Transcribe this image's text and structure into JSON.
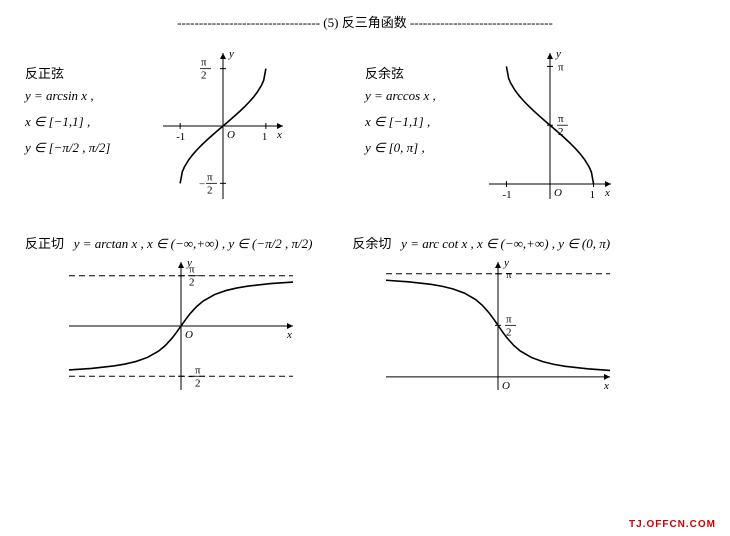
{
  "section": {
    "number": "(5)",
    "title": "反三角函数",
    "dashes": "---------------------------------",
    "full": "--------------------------------- (5)  反三角函数 ---------------------------------"
  },
  "arcsin": {
    "name": "反正弦",
    "formula": "y = arcsin x ,",
    "domain": "x ∈ [−1,1] ,",
    "range": "y ∈ [−π/2 , π/2]",
    "graph": {
      "type": "curve",
      "xlim": [
        -1.4,
        1.4
      ],
      "ylim": [
        -2.0,
        2.0
      ],
      "xticks": [
        {
          "v": -1,
          "label": "-1"
        },
        {
          "v": 1,
          "label": "1"
        }
      ],
      "yticks": [
        {
          "v": 1.5708,
          "label": "π/2"
        },
        {
          "v": -1.5708,
          "label": "−π/2"
        }
      ],
      "axis_color": "#000000",
      "curve_color": "#000000",
      "stroke_width": 1.6,
      "points": [
        [
          -1,
          -1.5708
        ],
        [
          -0.95,
          -1.2532
        ],
        [
          -0.9,
          -1.1198
        ],
        [
          -0.8,
          -0.9273
        ],
        [
          -0.7,
          -0.7754
        ],
        [
          -0.6,
          -0.6435
        ],
        [
          -0.5,
          -0.5236
        ],
        [
          -0.4,
          -0.4115
        ],
        [
          -0.3,
          -0.3047
        ],
        [
          -0.2,
          -0.2014
        ],
        [
          -0.1,
          -0.1002
        ],
        [
          0,
          0
        ],
        [
          0.1,
          0.1002
        ],
        [
          0.2,
          0.2014
        ],
        [
          0.3,
          0.3047
        ],
        [
          0.4,
          0.4115
        ],
        [
          0.5,
          0.5236
        ],
        [
          0.6,
          0.6435
        ],
        [
          0.7,
          0.7754
        ],
        [
          0.8,
          0.9273
        ],
        [
          0.9,
          1.1198
        ],
        [
          0.95,
          1.2532
        ],
        [
          1,
          1.5708
        ]
      ]
    }
  },
  "arccos": {
    "name": "反余弦",
    "formula": "y = arccos x ,",
    "domain": "x ∈ [−1,1] ,",
    "range": "y ∈ [0, π] ,",
    "graph": {
      "type": "curve",
      "xlim": [
        -1.4,
        1.4
      ],
      "ylim": [
        -0.4,
        3.5
      ],
      "xticks": [
        {
          "v": -1,
          "label": "-1"
        },
        {
          "v": 1,
          "label": "1"
        }
      ],
      "yticks": [
        {
          "v": 3.1416,
          "label": "π"
        },
        {
          "v": 1.5708,
          "label": "π/2"
        }
      ],
      "axis_color": "#000000",
      "curve_color": "#000000",
      "stroke_width": 1.6,
      "points": [
        [
          -1,
          3.1416
        ],
        [
          -0.95,
          2.824
        ],
        [
          -0.9,
          2.6906
        ],
        [
          -0.8,
          2.4981
        ],
        [
          -0.7,
          2.3462
        ],
        [
          -0.6,
          2.2143
        ],
        [
          -0.5,
          2.0944
        ],
        [
          -0.4,
          1.9823
        ],
        [
          -0.3,
          1.8755
        ],
        [
          -0.2,
          1.7722
        ],
        [
          -0.1,
          1.671
        ],
        [
          0,
          1.5708
        ],
        [
          0.1,
          1.4706
        ],
        [
          0.2,
          1.3694
        ],
        [
          0.3,
          1.2661
        ],
        [
          0.4,
          1.1593
        ],
        [
          0.5,
          1.0472
        ],
        [
          0.6,
          0.9273
        ],
        [
          0.7,
          0.7954
        ],
        [
          0.8,
          0.6435
        ],
        [
          0.9,
          0.451
        ],
        [
          0.95,
          0.3176
        ],
        [
          1,
          0
        ]
      ]
    }
  },
  "arctan": {
    "name": "反正切",
    "formula": "y = arctan x ,  x ∈ (−∞,+∞) ,",
    "range": "y ∈ (−π/2 , π/2)",
    "graph": {
      "type": "curve",
      "xlim": [
        -5,
        5
      ],
      "ylim": [
        -2.0,
        2.0
      ],
      "yticks": [
        {
          "v": 1.5708,
          "label": "π/2"
        },
        {
          "v": -1.5708,
          "label": "−π/2"
        }
      ],
      "asymptotes_y": [
        1.5708,
        -1.5708
      ],
      "axis_color": "#000000",
      "curve_color": "#000000",
      "asymptote_color": "#000000",
      "stroke_width": 1.6,
      "points": [
        [
          -5,
          -1.3734
        ],
        [
          -4,
          -1.3258
        ],
        [
          -3,
          -1.249
        ],
        [
          -2.5,
          -1.1903
        ],
        [
          -2,
          -1.1071
        ],
        [
          -1.5,
          -0.9828
        ],
        [
          -1,
          -0.7854
        ],
        [
          -0.7,
          -0.6107
        ],
        [
          -0.4,
          -0.3805
        ],
        [
          -0.2,
          -0.1974
        ],
        [
          0,
          0
        ],
        [
          0.2,
          0.1974
        ],
        [
          0.4,
          0.3805
        ],
        [
          0.7,
          0.6107
        ],
        [
          1,
          0.7854
        ],
        [
          1.5,
          0.9828
        ],
        [
          2,
          1.1071
        ],
        [
          2.5,
          1.1903
        ],
        [
          3,
          1.249
        ],
        [
          4,
          1.3258
        ],
        [
          5,
          1.3734
        ]
      ]
    }
  },
  "arccot": {
    "name": "反余切",
    "formula": "y = arc cot x ,  x ∈ (−∞,+∞) ,  y ∈ (0, π)",
    "graph": {
      "type": "curve",
      "xlim": [
        -5,
        5
      ],
      "ylim": [
        -0.4,
        3.5
      ],
      "yticks": [
        {
          "v": 3.1416,
          "label": "π"
        },
        {
          "v": 1.5708,
          "label": "π/2"
        }
      ],
      "asymptotes_y": [
        3.1416
      ],
      "axis_color": "#000000",
      "curve_color": "#000000",
      "asymptote_color": "#000000",
      "stroke_width": 1.6,
      "points": [
        [
          -5,
          2.9442
        ],
        [
          -4,
          2.8966
        ],
        [
          -3,
          2.8198
        ],
        [
          -2.5,
          2.7611
        ],
        [
          -2,
          2.6779
        ],
        [
          -1.5,
          2.5536
        ],
        [
          -1,
          2.3562
        ],
        [
          -0.7,
          2.1815
        ],
        [
          -0.4,
          1.9513
        ],
        [
          -0.2,
          1.7682
        ],
        [
          0,
          1.5708
        ],
        [
          0.2,
          1.3734
        ],
        [
          0.4,
          1.1903
        ],
        [
          0.7,
          0.9601
        ],
        [
          1,
          0.7854
        ],
        [
          1.5,
          0.588
        ],
        [
          2,
          0.4636
        ],
        [
          2.5,
          0.3805
        ],
        [
          3,
          0.3217
        ],
        [
          4,
          0.245
        ],
        [
          5,
          0.1974
        ]
      ]
    }
  },
  "watermark": "TJ.OFFCN.COM",
  "colors": {
    "background": "#ffffff",
    "text": "#000000",
    "watermark": "#d00000"
  }
}
